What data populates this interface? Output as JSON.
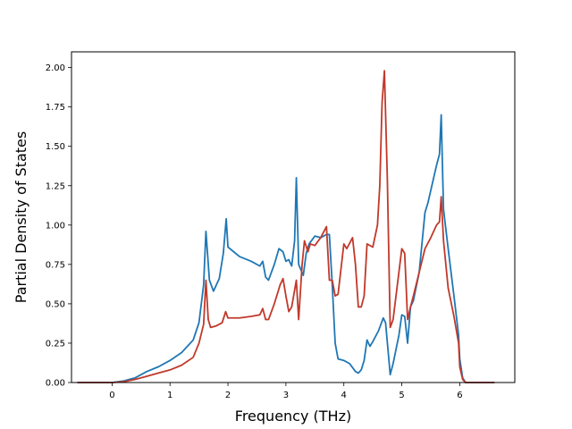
{
  "chart_data": {
    "type": "line",
    "xlabel": "Frequency (THz)",
    "ylabel": "Partial Density of States",
    "xlim": [
      -0.7,
      6.95
    ],
    "ylim": [
      0,
      2.1
    ],
    "xticks": [
      0,
      1,
      2,
      3,
      4,
      5,
      6
    ],
    "xtick_labels": [
      "0",
      "1",
      "2",
      "3",
      "4",
      "5",
      "6"
    ],
    "yticks": [
      0,
      0.25,
      0.5,
      0.75,
      1.0,
      1.25,
      1.5,
      1.75,
      2.0
    ],
    "ytick_labels": [
      "0.00",
      "0.25",
      "0.50",
      "0.75",
      "1.00",
      "1.25",
      "1.50",
      "1.75",
      "2.00"
    ],
    "grid": false,
    "series": [
      {
        "color": "#1f77b4",
        "x": [
          -0.6,
          0.0,
          0.2,
          0.4,
          0.6,
          0.8,
          1.0,
          1.2,
          1.4,
          1.5,
          1.58,
          1.62,
          1.68,
          1.75,
          1.85,
          1.92,
          1.97,
          2.0,
          2.1,
          2.2,
          2.4,
          2.55,
          2.6,
          2.65,
          2.7,
          2.8,
          2.88,
          2.95,
          3.0,
          3.05,
          3.1,
          3.15,
          3.18,
          3.22,
          3.3,
          3.35,
          3.4,
          3.5,
          3.6,
          3.7,
          3.75,
          3.8,
          3.85,
          3.9,
          4.0,
          4.1,
          4.2,
          4.25,
          4.3,
          4.35,
          4.4,
          4.45,
          4.5,
          4.6,
          4.68,
          4.72,
          4.8,
          4.85,
          4.9,
          4.95,
          5.0,
          5.05,
          5.1,
          5.15,
          5.2,
          5.3,
          5.4,
          5.45,
          5.5,
          5.6,
          5.65,
          5.68,
          5.72,
          5.8,
          5.9,
          5.98,
          6.0,
          6.05,
          6.1,
          6.6
        ],
        "values": [
          0,
          0,
          0.01,
          0.03,
          0.07,
          0.1,
          0.14,
          0.19,
          0.27,
          0.38,
          0.62,
          0.96,
          0.65,
          0.58,
          0.66,
          0.82,
          1.04,
          0.86,
          0.83,
          0.8,
          0.77,
          0.74,
          0.77,
          0.67,
          0.65,
          0.75,
          0.85,
          0.83,
          0.77,
          0.78,
          0.74,
          0.9,
          1.3,
          0.75,
          0.68,
          0.82,
          0.88,
          0.93,
          0.92,
          0.94,
          0.94,
          0.62,
          0.25,
          0.15,
          0.14,
          0.12,
          0.07,
          0.06,
          0.08,
          0.14,
          0.27,
          0.23,
          0.26,
          0.33,
          0.41,
          0.38,
          0.05,
          0.12,
          0.21,
          0.3,
          0.43,
          0.42,
          0.25,
          0.48,
          0.52,
          0.7,
          1.08,
          1.14,
          1.22,
          1.38,
          1.45,
          1.7,
          1.1,
          0.85,
          0.55,
          0.3,
          0.15,
          0.03,
          0,
          0
        ]
      },
      {
        "color": "#c0392b",
        "x": [
          -0.6,
          0.0,
          0.2,
          0.4,
          0.6,
          0.8,
          1.0,
          1.2,
          1.4,
          1.5,
          1.58,
          1.62,
          1.66,
          1.7,
          1.8,
          1.9,
          1.96,
          2.0,
          2.2,
          2.4,
          2.55,
          2.6,
          2.65,
          2.7,
          2.8,
          2.9,
          2.95,
          3.0,
          3.05,
          3.1,
          3.18,
          3.22,
          3.28,
          3.32,
          3.38,
          3.42,
          3.5,
          3.6,
          3.7,
          3.75,
          3.8,
          3.85,
          3.9,
          4.0,
          4.05,
          4.15,
          4.2,
          4.25,
          4.3,
          4.35,
          4.4,
          4.5,
          4.58,
          4.62,
          4.66,
          4.7,
          4.75,
          4.8,
          4.85,
          4.9,
          5.0,
          5.05,
          5.1,
          5.15,
          5.2,
          5.3,
          5.4,
          5.5,
          5.6,
          5.65,
          5.68,
          5.72,
          5.8,
          5.9,
          5.98,
          6.0,
          6.05,
          6.1,
          6.6
        ],
        "values": [
          0,
          0,
          0.005,
          0.02,
          0.04,
          0.06,
          0.08,
          0.11,
          0.16,
          0.25,
          0.37,
          0.65,
          0.4,
          0.35,
          0.36,
          0.38,
          0.45,
          0.41,
          0.41,
          0.42,
          0.43,
          0.47,
          0.4,
          0.4,
          0.5,
          0.62,
          0.66,
          0.55,
          0.45,
          0.48,
          0.65,
          0.4,
          0.75,
          0.9,
          0.83,
          0.88,
          0.87,
          0.92,
          0.99,
          0.65,
          0.65,
          0.55,
          0.56,
          0.88,
          0.85,
          0.92,
          0.75,
          0.48,
          0.48,
          0.55,
          0.88,
          0.86,
          1.0,
          1.25,
          1.78,
          1.98,
          1.3,
          0.35,
          0.4,
          0.55,
          0.85,
          0.82,
          0.4,
          0.48,
          0.55,
          0.7,
          0.85,
          0.92,
          1.0,
          1.02,
          1.18,
          0.9,
          0.6,
          0.42,
          0.25,
          0.1,
          0.02,
          0,
          0
        ]
      }
    ]
  }
}
